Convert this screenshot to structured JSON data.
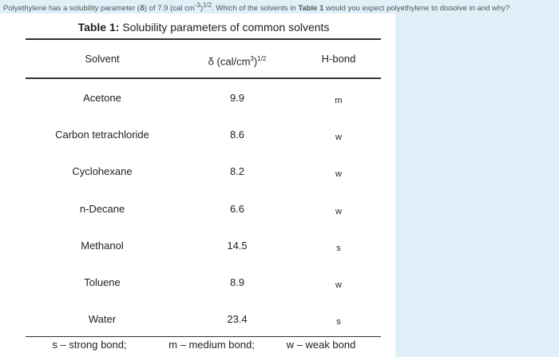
{
  "question": [
    "Polyethylene has a solubility parameter (",
    "δ",
    ") of 7.9 (cal cm",
    "-3",
    ")",
    "1/2",
    ". Which of the solvents in ",
    "Table 1",
    " would you expect polyethylene to dissolve in and why?"
  ],
  "table": {
    "caption": [
      "Table 1:",
      " Solubility parameters of common solvents"
    ],
    "header": {
      "solvent": "Solvent",
      "delta": [
        "δ (cal/cm",
        "3",
        ")",
        "1/2"
      ],
      "hbond": "H-bond"
    },
    "rows": [
      [
        "Acetone",
        "9.9",
        "m"
      ],
      [
        "Carbon tetrachloride",
        "8.6",
        "w"
      ],
      [
        "Cyclohexane",
        "8.2",
        "w"
      ],
      [
        "n-Decane",
        "6.6",
        "w"
      ],
      [
        "Methanol",
        "14.5",
        "s"
      ],
      [
        "Toluene",
        "8.9",
        "w"
      ],
      [
        "Water",
        "23.4",
        "s"
      ]
    ],
    "footer": [
      "s – strong bond;",
      "m – medium bond;",
      "w – weak bond"
    ]
  }
}
